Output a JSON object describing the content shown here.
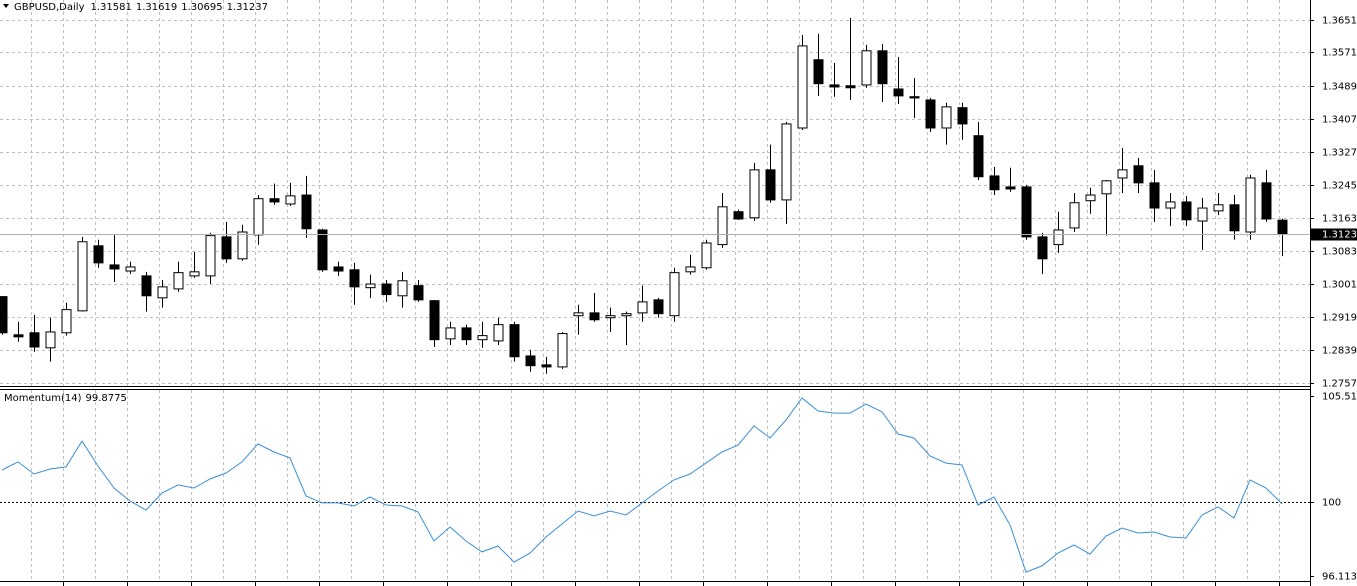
{
  "chart_data": [
    {
      "type": "candlestick",
      "title": "GBPUSD,Daily",
      "open": [
        1.297,
        1.2876,
        1.2881,
        1.2844,
        1.2881,
        1.2935,
        1.3095,
        1.3048,
        1.3033,
        1.3021,
        1.2967,
        1.2989,
        1.3021,
        1.3021,
        1.3117,
        1.3063,
        1.3122,
        1.3211,
        1.3198,
        1.322,
        1.3134,
        1.3043,
        1.3036,
        1.2992,
        1.3001,
        1.2972,
        1.2997,
        1.296,
        1.2866,
        1.2893,
        1.2864,
        1.2861,
        1.2901,
        1.2824,
        1.2802,
        1.2797,
        1.2923,
        1.293,
        1.2918,
        1.2923,
        1.293,
        1.2962,
        1.2923,
        1.3031,
        1.3041,
        1.3098,
        1.3179,
        1.3164,
        1.3282,
        1.3208,
        1.3385,
        1.3553,
        1.3491,
        1.3489,
        1.3491,
        1.3575,
        1.3481,
        1.3462,
        1.3454,
        1.3385,
        1.3435,
        1.3366,
        1.3267,
        1.324,
        1.324,
        1.3117,
        1.3098,
        1.3139,
        1.3206,
        1.3223,
        1.3262,
        1.3292,
        1.325,
        1.3188,
        1.3203,
        1.3156,
        1.3181,
        1.3196,
        1.3129,
        1.325,
        1.31581
      ],
      "high": [
        1.297,
        1.2908,
        1.2925,
        1.2918,
        1.2955,
        1.3117,
        1.311,
        1.3124,
        1.3056,
        1.3031,
        1.3011,
        1.3056,
        1.308,
        1.3127,
        1.3154,
        1.3147,
        1.322,
        1.3248,
        1.325,
        1.3267,
        1.3137,
        1.3056,
        1.3053,
        1.3024,
        1.3011,
        1.3031,
        1.3011,
        1.2962,
        1.2908,
        1.2901,
        1.2908,
        1.2918,
        1.2908,
        1.2839,
        1.2822,
        1.2883,
        1.295,
        1.2979,
        1.2943,
        1.2933,
        1.2997,
        1.2967,
        1.3041,
        1.3073,
        1.311,
        1.3225,
        1.3184,
        1.3299,
        1.3344,
        1.34,
        1.3614,
        1.3617,
        1.3545,
        1.3656,
        1.359,
        1.3592,
        1.356,
        1.3508,
        1.3459,
        1.3447,
        1.3447,
        1.34,
        1.3289,
        1.3287,
        1.3245,
        1.3127,
        1.3179,
        1.3225,
        1.3238,
        1.3257,
        1.3336,
        1.3311,
        1.3282,
        1.3225,
        1.3218,
        1.3213,
        1.3225,
        1.322,
        1.327,
        1.3282,
        1.31619
      ],
      "low": [
        1.2876,
        1.2859,
        1.2834,
        1.281,
        1.2874,
        1.2933,
        1.3041,
        1.3006,
        1.3026,
        1.2933,
        1.2943,
        1.2982,
        1.3016,
        1.3001,
        1.3053,
        1.3058,
        1.3098,
        1.3196,
        1.3193,
        1.3115,
        1.3031,
        1.3021,
        1.295,
        1.2967,
        1.2957,
        1.2943,
        1.2957,
        1.2846,
        1.2851,
        1.2851,
        1.2844,
        1.2851,
        1.281,
        1.2785,
        1.278,
        1.2792,
        1.2876,
        1.2908,
        1.2883,
        1.2851,
        1.2908,
        1.2918,
        1.2908,
        1.3024,
        1.3036,
        1.309,
        1.3159,
        1.3156,
        1.3201,
        1.3149,
        1.338,
        1.3464,
        1.3462,
        1.3454,
        1.3484,
        1.3449,
        1.3444,
        1.341,
        1.3375,
        1.3344,
        1.3356,
        1.3257,
        1.322,
        1.3228,
        1.311,
        1.3026,
        1.3078,
        1.3129,
        1.3174,
        1.312,
        1.3225,
        1.3225,
        1.3154,
        1.3144,
        1.3144,
        1.3085,
        1.3171,
        1.311,
        1.311,
        1.3154,
        1.30695
      ],
      "close": [
        1.2881,
        1.2871,
        1.2846,
        1.2883,
        1.2938,
        1.3105,
        1.3053,
        1.3038,
        1.3043,
        1.2972,
        1.2994,
        1.3029,
        1.3031,
        1.312,
        1.3063,
        1.3129,
        1.3211,
        1.3203,
        1.3218,
        1.3137,
        1.3036,
        1.3033,
        1.2994,
        1.3001,
        1.2975,
        1.3009,
        1.2962,
        1.2864,
        1.2893,
        1.2864,
        1.2874,
        1.2901,
        1.2822,
        1.28,
        1.2797,
        1.2879,
        1.293,
        1.2913,
        1.2923,
        1.2928,
        1.2957,
        1.2928,
        1.3029,
        1.3043,
        1.3102,
        1.3191,
        1.3161,
        1.3282,
        1.3208,
        1.3395,
        1.3587,
        1.3494,
        1.3486,
        1.3484,
        1.3575,
        1.3494,
        1.3464,
        1.3459,
        1.3385,
        1.3437,
        1.3395,
        1.3265,
        1.3233,
        1.3235,
        1.3117,
        1.3063,
        1.3134,
        1.3201,
        1.322,
        1.3255,
        1.3282,
        1.325,
        1.3188,
        1.3203,
        1.3159,
        1.3188,
        1.3196,
        1.3132,
        1.3262,
        1.3161,
        1.31237
      ],
      "up_color": "#ffffff",
      "down_color": "#000000",
      "ylim": [
        1.275,
        1.37
      ],
      "yticks": [
        {
          "value": 1.3651,
          "label": "1.36510"
        },
        {
          "value": 1.3571,
          "label": "1.35710"
        },
        {
          "value": 1.3489,
          "label": "1.34890"
        },
        {
          "value": 1.3407,
          "label": "1.34070"
        },
        {
          "value": 1.3327,
          "label": "1.33270"
        },
        {
          "value": 1.3245,
          "label": "1.32450"
        },
        {
          "value": 1.3163,
          "label": "1.31630"
        },
        {
          "value": 1.3083,
          "label": "1.30830"
        },
        {
          "value": 1.3001,
          "label": "1.30010"
        },
        {
          "value": 1.2919,
          "label": "1.29190"
        },
        {
          "value": 1.2839,
          "label": "1.28390"
        },
        {
          "value": 1.2757,
          "label": "1.27570"
        }
      ],
      "grid": true
    },
    {
      "type": "line",
      "title": "Momentum(14)",
      "series": [
        {
          "color": "#3a8fd9",
          "values": [
            101.65,
            102.07,
            101.44,
            101.7,
            101.81,
            103.16,
            101.86,
            100.71,
            100.03,
            99.56,
            100.45,
            100.87,
            100.71,
            101.18,
            101.49,
            102.07,
            103.01,
            102.59,
            102.28,
            100.29,
            99.93,
            99.93,
            99.77,
            100.24,
            99.82,
            99.77,
            99.46,
            97.94,
            98.67,
            97.94,
            97.37,
            97.68,
            96.84,
            97.31,
            98.15,
            98.83,
            99.51,
            99.25,
            99.51,
            99.3,
            99.93,
            100.55,
            101.13,
            101.44,
            102.01,
            102.59,
            102.95,
            103.95,
            103.32,
            104.26,
            105.41,
            104.73,
            104.62,
            104.62,
            105.09,
            104.68,
            103.53,
            103.32,
            102.38,
            102.01,
            101.91,
            99.82,
            100.24,
            98.78,
            96.32,
            96.64,
            97.31,
            97.73,
            97.26,
            98.2,
            98.62,
            98.36,
            98.41,
            98.15,
            98.1,
            99.3,
            99.72,
            99.14,
            101.13,
            100.71,
            99.8775
          ]
        }
      ],
      "ylim": [
        96.1139,
        105.5125
      ],
      "yticks": [
        105.5125,
        100,
        96.1139
      ],
      "levels": [
        100
      ]
    }
  ]
}
